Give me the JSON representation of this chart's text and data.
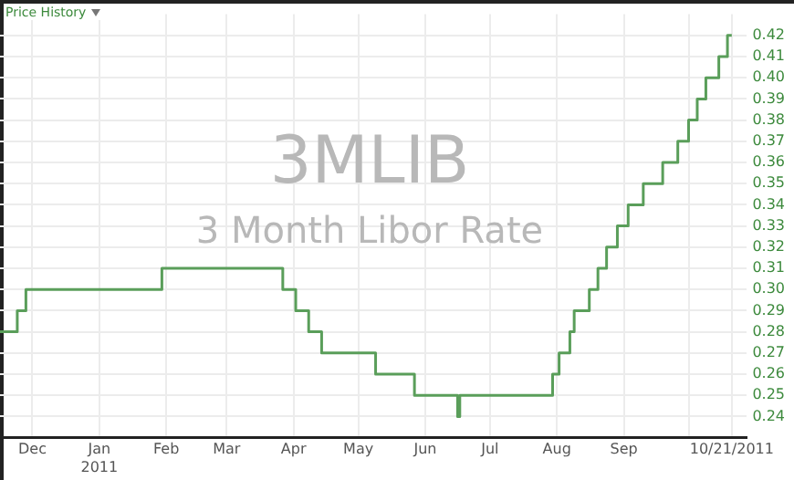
{
  "chart_data": {
    "type": "step",
    "title": "3MLIB",
    "subtitle": "3 Month Libor Rate",
    "annotations": [
      "Price History"
    ],
    "x": [
      "2010-11-16",
      "2010-11-24",
      "2010-11-28",
      "2011-01-30",
      "2011-03-27",
      "2011-04-02",
      "2011-04-08",
      "2011-04-14",
      "2011-05-09",
      "2011-05-27",
      "2011-06-16",
      "2011-06-17",
      "2011-07-30",
      "2011-08-02",
      "2011-08-07",
      "2011-08-09",
      "2011-08-16",
      "2011-08-20",
      "2011-08-24",
      "2011-08-29",
      "2011-09-03",
      "2011-09-10",
      "2011-09-19",
      "2011-09-26",
      "2011-10-01",
      "2011-10-05",
      "2011-10-09",
      "2011-10-15",
      "2011-10-19",
      "2011-10-21"
    ],
    "series": [
      {
        "color": "#5a9e5a",
        "values": [
          0.28,
          0.29,
          0.3,
          0.31,
          0.3,
          0.29,
          0.28,
          0.27,
          0.26,
          0.25,
          0.24,
          0.25,
          0.26,
          0.27,
          0.28,
          0.29,
          0.3,
          0.31,
          0.32,
          0.33,
          0.34,
          0.35,
          0.36,
          0.37,
          0.38,
          0.39,
          0.4,
          0.41,
          0.42,
          0.42
        ]
      }
    ],
    "xlim": [
      "2010-11-16",
      "2011-10-28"
    ],
    "xticks": [
      {
        "value": "2010-12-01",
        "label": "Dec"
      },
      {
        "value": "2011-01-01",
        "label": "Jan\n2011"
      },
      {
        "value": "2011-02-01",
        "label": "Feb"
      },
      {
        "value": "2011-03-01",
        "label": "Mar"
      },
      {
        "value": "2011-04-01",
        "label": "Apr"
      },
      {
        "value": "2011-05-01",
        "label": "May"
      },
      {
        "value": "2011-06-01",
        "label": "Jun"
      },
      {
        "value": "2011-07-01",
        "label": "Jul"
      },
      {
        "value": "2011-08-01",
        "label": "Aug"
      },
      {
        "value": "2011-09-01",
        "label": "Sep"
      },
      {
        "value": "2011-10-01",
        "label": null
      },
      {
        "value": "2011-10-21",
        "label": "10/21/2011"
      }
    ],
    "ylim": [
      0.23,
      0.43
    ],
    "yticks": [
      0.24,
      0.25,
      0.26,
      0.27,
      0.28,
      0.29,
      {
        "value": 0.3,
        "label": "0.30"
      },
      0.31,
      0.32,
      0.33,
      0.34,
      0.35,
      0.36,
      0.37,
      0.38,
      0.39,
      {
        "value": 0.4,
        "label": "0.40"
      },
      0.41,
      0.42
    ],
    "grid": true,
    "legend": false,
    "marker": "none",
    "line_style": "solid"
  }
}
